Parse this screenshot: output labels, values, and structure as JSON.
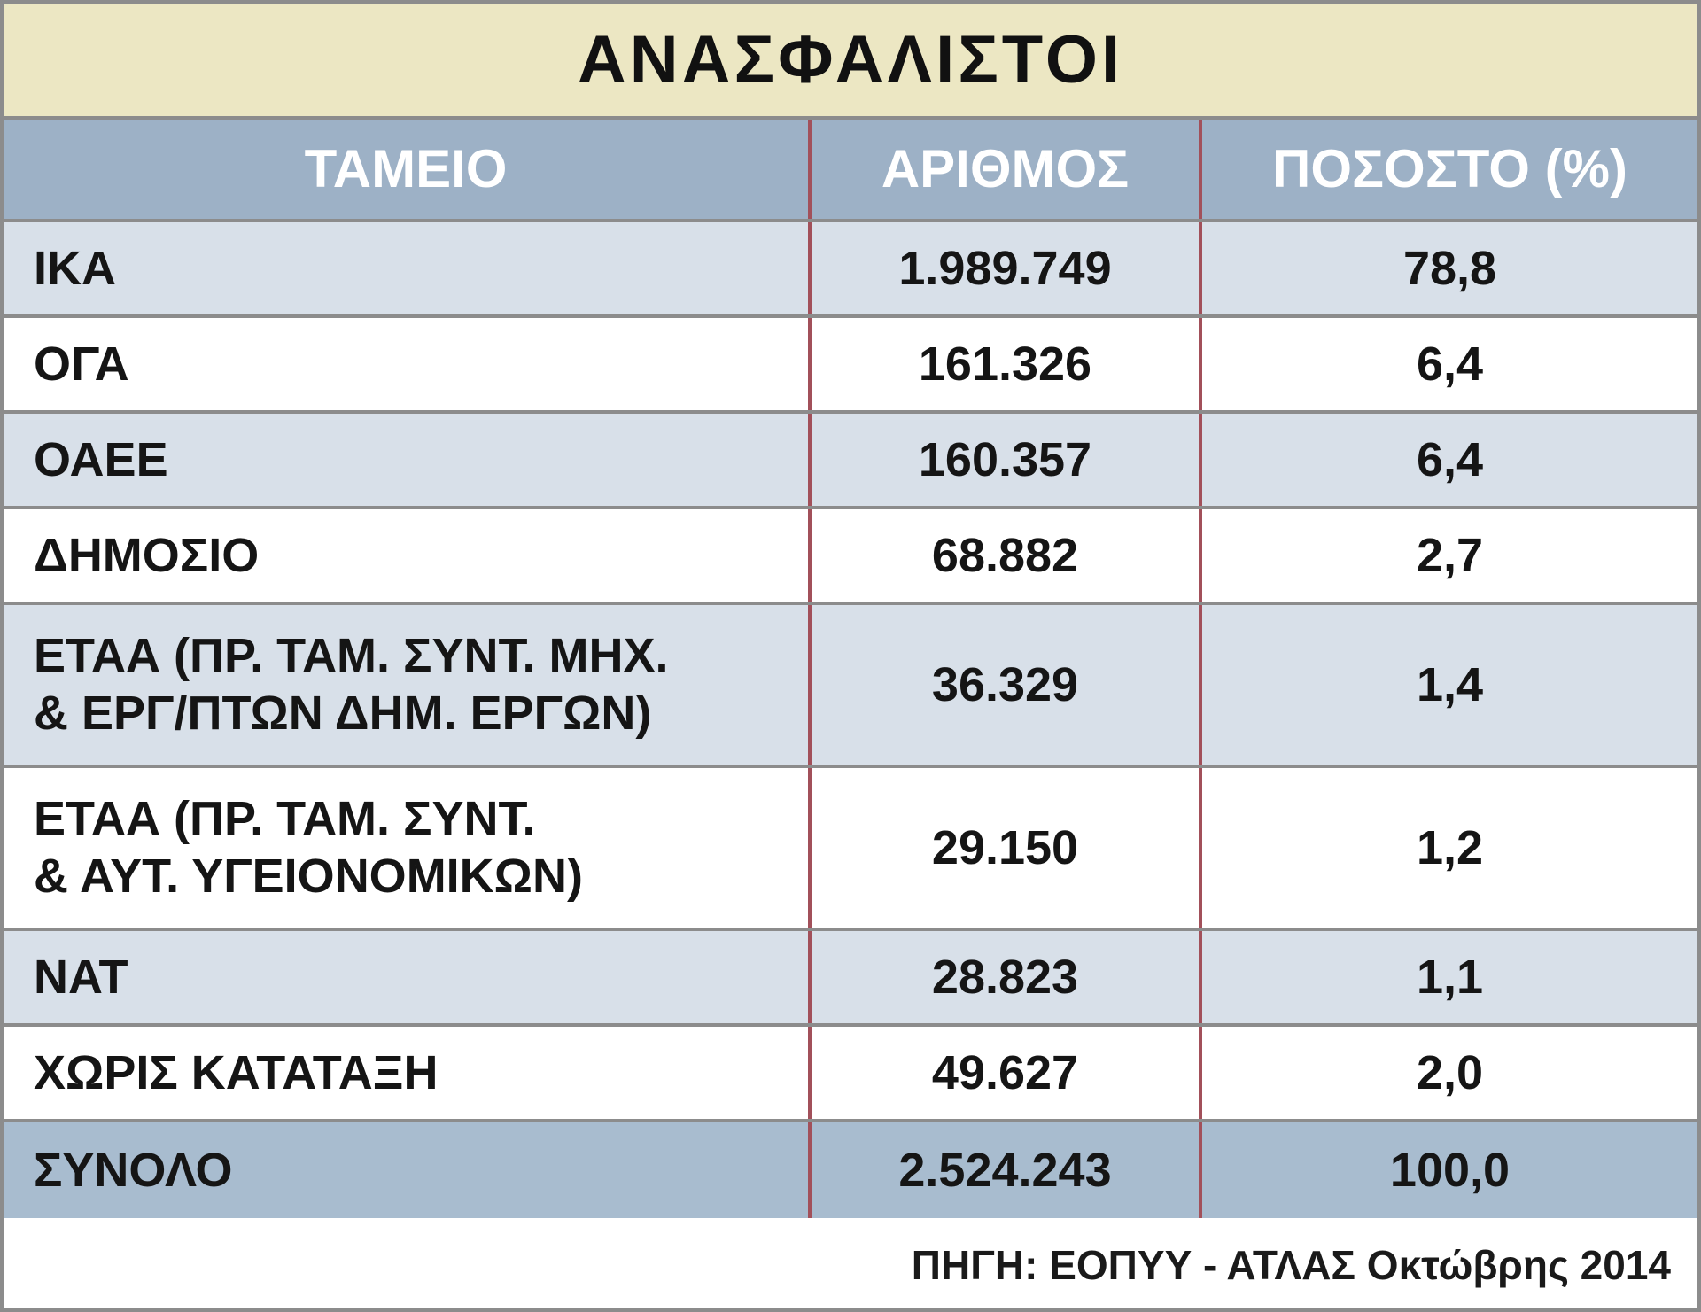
{
  "title": "ΑΝΑΣΦΑΛΙΣΤΟΙ",
  "table": {
    "header": [
      "ΤΑΜΕΙΟ",
      "ΑΡΙΘΜΟΣ",
      "ΠΟΣΟΣΤΟ (%)"
    ],
    "rows": [
      [
        "ΙΚΑ",
        "1.989.749",
        "78,8"
      ],
      [
        "ΟΓΑ",
        "161.326",
        "6,4"
      ],
      [
        "ΟΑΕΕ",
        "160.357",
        "6,4"
      ],
      [
        "ΔΗΜΟΣΙΟ",
        "68.882",
        "2,7"
      ],
      [
        "ΕΤΑΑ (ΠΡ. ΤΑΜ. ΣΥΝΤ. ΜΗΧ.\n& ΕΡΓ/ΠΤΩΝ ΔΗΜ. ΕΡΓΩΝ)",
        "36.329",
        "1,4"
      ],
      [
        "ΕΤΑΑ (ΠΡ. ΤΑΜ. ΣΥΝΤ.\n& ΑΥΤ. ΥΓΕΙΟΝΟΜΙΚΩΝ)",
        "29.150",
        "1,2"
      ],
      [
        "ΝΑΤ",
        "28.823",
        "1,1"
      ],
      [
        "ΧΩΡΙΣ ΚΑΤΑΤΑΞΗ",
        "49.627",
        "2,0"
      ],
      [
        "ΣΥΝΟΛΟ",
        "2.524.243",
        "100,0"
      ]
    ]
  },
  "source": "ΠΗΓΗ: ΕΟΠΥΥ - ΑΤΛΑΣ Οκτώβρης 2014"
}
